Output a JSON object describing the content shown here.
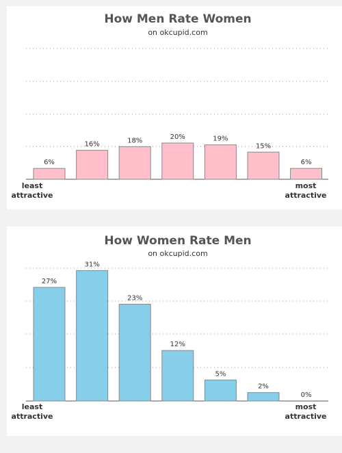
{
  "colors": {
    "pink": "#ffc0cb",
    "blue": "#87ceeb",
    "bar_stroke": "#888888"
  },
  "chart_data": [
    {
      "type": "bar",
      "title": "How Men Rate Women",
      "subtitle": "on okcupid.com",
      "categories": [
        "1",
        "2",
        "3",
        "4",
        "5",
        "6",
        "7"
      ],
      "values": [
        6,
        16,
        18,
        20,
        19,
        15,
        6
      ],
      "value_labels": [
        "6%",
        "16%",
        "18%",
        "20%",
        "19%",
        "15%",
        "6%"
      ],
      "xlabel_left": [
        "least",
        "attractive"
      ],
      "xlabel_right": [
        "most",
        "attractive"
      ],
      "ylim": [
        0,
        40
      ],
      "grid": true,
      "color": "pink"
    },
    {
      "type": "bar",
      "title": "How Women Rate Men",
      "subtitle": "on okcupid.com",
      "categories": [
        "1",
        "2",
        "3",
        "4",
        "5",
        "6",
        "7"
      ],
      "values": [
        27,
        31,
        23,
        12,
        5,
        2,
        0
      ],
      "value_labels": [
        "27%",
        "31%",
        "23%",
        "12%",
        "5%",
        "2%",
        "0%"
      ],
      "xlabel_left": [
        "least",
        "attractive"
      ],
      "xlabel_right": [
        "most",
        "attractive"
      ],
      "ylim": [
        0,
        40
      ],
      "grid": true,
      "color": "blue"
    }
  ]
}
